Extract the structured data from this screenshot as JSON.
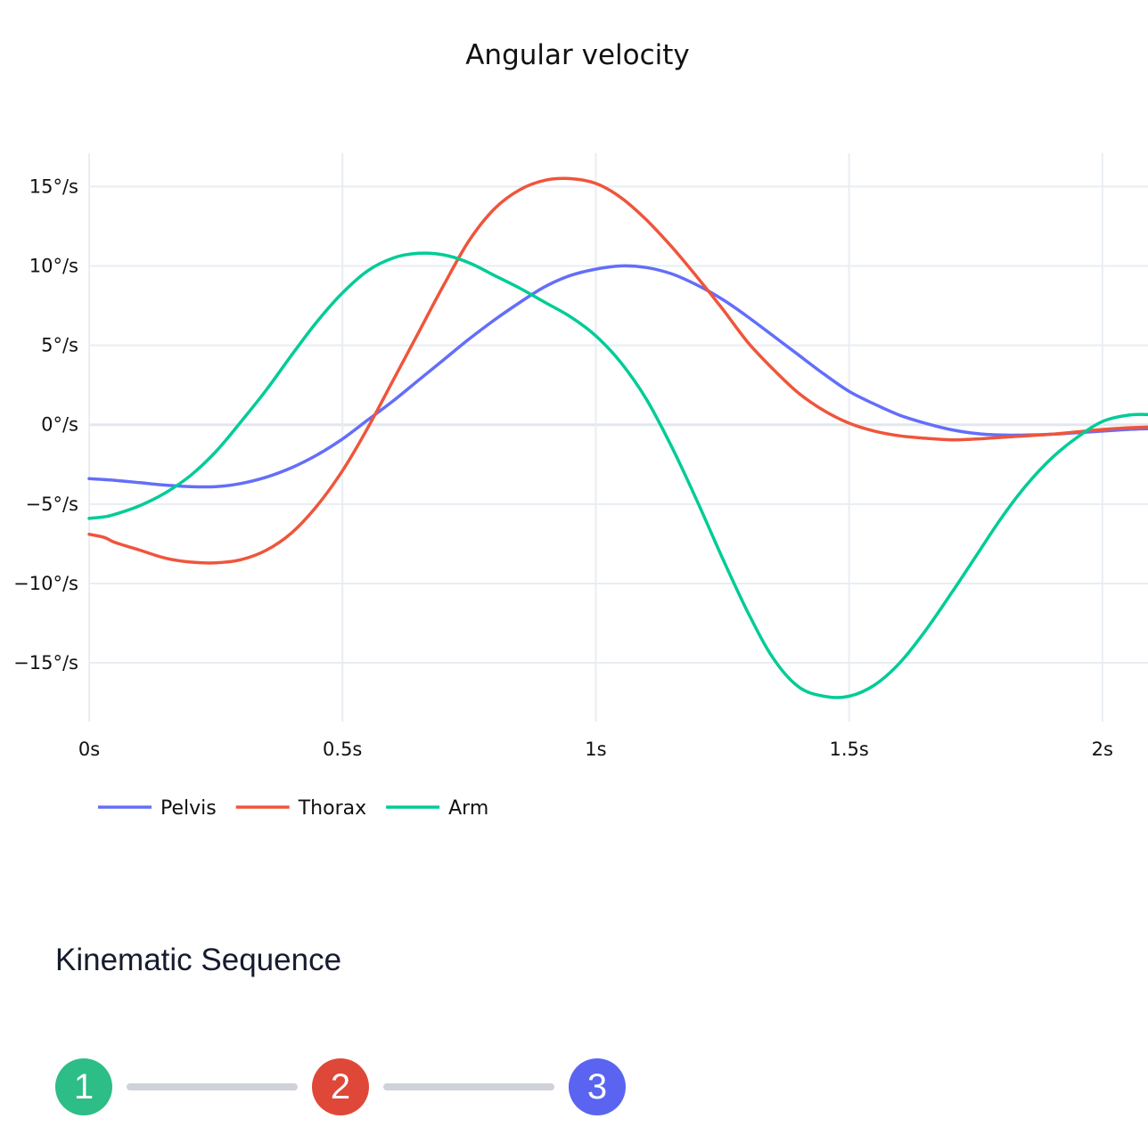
{
  "chart_data": {
    "type": "line",
    "title": "Angular velocity",
    "xlabel": "",
    "ylabel": "",
    "xlim": [
      0,
      2.09
    ],
    "ylim": [
      -18.7,
      17.1
    ],
    "grid": true,
    "legend_position": "bottom-left",
    "x_ticks": [
      {
        "value": 0,
        "label": "0s"
      },
      {
        "value": 0.5,
        "label": "0.5s"
      },
      {
        "value": 1,
        "label": "1s"
      },
      {
        "value": 1.5,
        "label": "1.5s"
      },
      {
        "value": 2,
        "label": "2s"
      }
    ],
    "y_ticks": [
      {
        "value": 15,
        "label": "15°/s"
      },
      {
        "value": 10,
        "label": "10°/s"
      },
      {
        "value": 5,
        "label": "5°/s"
      },
      {
        "value": 0,
        "label": "0°/s"
      },
      {
        "value": -5,
        "label": "−5°/s"
      },
      {
        "value": -10,
        "label": "−10°/s"
      },
      {
        "value": -15,
        "label": "−15°/s"
      }
    ],
    "series": [
      {
        "name": "Pelvis",
        "color": "#636efa",
        "points": [
          [
            0,
            -3.4
          ],
          [
            0.05,
            -3.5
          ],
          [
            0.1,
            -3.65
          ],
          [
            0.15,
            -3.8
          ],
          [
            0.2,
            -3.9
          ],
          [
            0.25,
            -3.9
          ],
          [
            0.3,
            -3.7
          ],
          [
            0.35,
            -3.3
          ],
          [
            0.4,
            -2.7
          ],
          [
            0.45,
            -1.9
          ],
          [
            0.5,
            -0.9
          ],
          [
            0.55,
            0.3
          ],
          [
            0.6,
            1.5
          ],
          [
            0.65,
            2.8
          ],
          [
            0.7,
            4.1
          ],
          [
            0.75,
            5.4
          ],
          [
            0.8,
            6.6
          ],
          [
            0.85,
            7.7
          ],
          [
            0.9,
            8.7
          ],
          [
            0.95,
            9.4
          ],
          [
            1.0,
            9.8
          ],
          [
            1.05,
            10.0
          ],
          [
            1.1,
            9.9
          ],
          [
            1.15,
            9.5
          ],
          [
            1.2,
            8.8
          ],
          [
            1.25,
            7.9
          ],
          [
            1.3,
            6.8
          ],
          [
            1.35,
            5.6
          ],
          [
            1.4,
            4.4
          ],
          [
            1.45,
            3.2
          ],
          [
            1.5,
            2.1
          ],
          [
            1.55,
            1.3
          ],
          [
            1.6,
            0.6
          ],
          [
            1.65,
            0.1
          ],
          [
            1.7,
            -0.3
          ],
          [
            1.75,
            -0.55
          ],
          [
            1.8,
            -0.65
          ],
          [
            1.85,
            -0.65
          ],
          [
            1.9,
            -0.6
          ],
          [
            1.95,
            -0.5
          ],
          [
            2.0,
            -0.4
          ],
          [
            2.05,
            -0.3
          ],
          [
            2.09,
            -0.25
          ]
        ]
      },
      {
        "name": "Thorax",
        "color": "#ef553b",
        "points": [
          [
            0,
            -6.9
          ],
          [
            0.03,
            -7.1
          ],
          [
            0.05,
            -7.4
          ],
          [
            0.1,
            -7.9
          ],
          [
            0.15,
            -8.4
          ],
          [
            0.2,
            -8.65
          ],
          [
            0.25,
            -8.7
          ],
          [
            0.3,
            -8.5
          ],
          [
            0.35,
            -7.9
          ],
          [
            0.4,
            -6.8
          ],
          [
            0.45,
            -5.1
          ],
          [
            0.5,
            -2.9
          ],
          [
            0.55,
            -0.2
          ],
          [
            0.6,
            2.8
          ],
          [
            0.65,
            5.8
          ],
          [
            0.7,
            8.8
          ],
          [
            0.75,
            11.6
          ],
          [
            0.8,
            13.6
          ],
          [
            0.85,
            14.8
          ],
          [
            0.9,
            15.4
          ],
          [
            0.95,
            15.5
          ],
          [
            1.0,
            15.2
          ],
          [
            1.05,
            14.3
          ],
          [
            1.1,
            12.9
          ],
          [
            1.15,
            11.2
          ],
          [
            1.2,
            9.3
          ],
          [
            1.25,
            7.3
          ],
          [
            1.3,
            5.2
          ],
          [
            1.35,
            3.5
          ],
          [
            1.4,
            2.0
          ],
          [
            1.45,
            0.9
          ],
          [
            1.5,
            0.1
          ],
          [
            1.55,
            -0.4
          ],
          [
            1.6,
            -0.7
          ],
          [
            1.65,
            -0.85
          ],
          [
            1.7,
            -0.95
          ],
          [
            1.75,
            -0.9
          ],
          [
            1.8,
            -0.8
          ],
          [
            1.85,
            -0.7
          ],
          [
            1.9,
            -0.6
          ],
          [
            1.95,
            -0.45
          ],
          [
            2.0,
            -0.3
          ],
          [
            2.05,
            -0.2
          ],
          [
            2.09,
            -0.15
          ]
        ]
      },
      {
        "name": "Arm",
        "color": "#00cc96",
        "points": [
          [
            0,
            -5.9
          ],
          [
            0.03,
            -5.8
          ],
          [
            0.05,
            -5.65
          ],
          [
            0.1,
            -5.1
          ],
          [
            0.15,
            -4.3
          ],
          [
            0.2,
            -3.2
          ],
          [
            0.25,
            -1.7
          ],
          [
            0.3,
            0.2
          ],
          [
            0.35,
            2.2
          ],
          [
            0.4,
            4.4
          ],
          [
            0.45,
            6.5
          ],
          [
            0.5,
            8.3
          ],
          [
            0.55,
            9.7
          ],
          [
            0.6,
            10.5
          ],
          [
            0.65,
            10.8
          ],
          [
            0.7,
            10.7
          ],
          [
            0.75,
            10.2
          ],
          [
            0.8,
            9.4
          ],
          [
            0.85,
            8.6
          ],
          [
            0.9,
            7.7
          ],
          [
            0.95,
            6.8
          ],
          [
            1.0,
            5.6
          ],
          [
            1.05,
            3.9
          ],
          [
            1.1,
            1.6
          ],
          [
            1.15,
            -1.4
          ],
          [
            1.2,
            -4.8
          ],
          [
            1.25,
            -8.4
          ],
          [
            1.3,
            -11.8
          ],
          [
            1.35,
            -14.7
          ],
          [
            1.4,
            -16.5
          ],
          [
            1.45,
            -17.1
          ],
          [
            1.5,
            -17.1
          ],
          [
            1.55,
            -16.4
          ],
          [
            1.6,
            -15.0
          ],
          [
            1.65,
            -13.0
          ],
          [
            1.7,
            -10.7
          ],
          [
            1.75,
            -8.3
          ],
          [
            1.8,
            -5.9
          ],
          [
            1.85,
            -3.8
          ],
          [
            1.9,
            -2.1
          ],
          [
            1.95,
            -0.8
          ],
          [
            2.0,
            0.2
          ],
          [
            2.05,
            0.6
          ],
          [
            2.09,
            0.65
          ]
        ]
      }
    ]
  },
  "sequence": {
    "title": "Kinematic Sequence",
    "steps": [
      {
        "label": "1",
        "color": "#2dbd87"
      },
      {
        "label": "2",
        "color": "#df4838"
      },
      {
        "label": "3",
        "color": "#5a64f0"
      }
    ]
  }
}
